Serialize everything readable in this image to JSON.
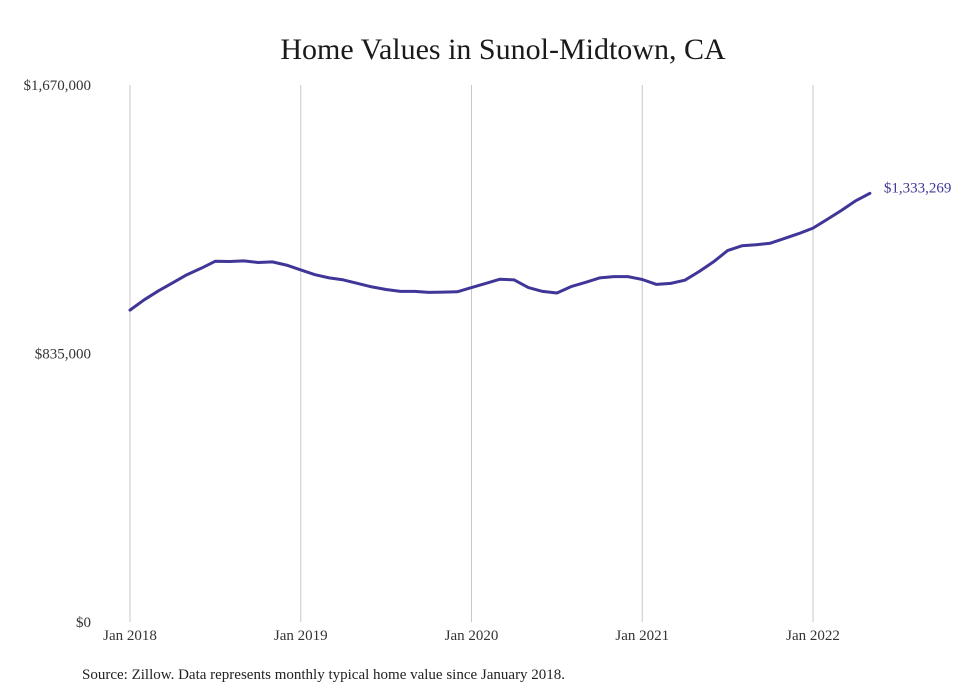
{
  "chart_data": {
    "type": "line",
    "title": "Home Values in Sunol-Midtown, CA",
    "xlabel": "",
    "ylabel": "",
    "ylim": [
      0,
      1670000
    ],
    "ytick_values": [
      0,
      835000,
      1670000
    ],
    "ytick_labels": [
      "$0",
      "$835,000",
      "$1,670,000"
    ],
    "xtick_values": [
      "2018-01",
      "2019-01",
      "2020-01",
      "2021-01",
      "2022-01"
    ],
    "xtick_labels": [
      "Jan 2018",
      "Jan 2019",
      "Jan 2020",
      "Jan 2021",
      "Jan 2022"
    ],
    "xlim": [
      "2018-01",
      "2022-12"
    ],
    "grid": "vertical",
    "line_color": "#3f3697",
    "series": [
      {
        "x": [
          "2018-01",
          "2018-02",
          "2018-03",
          "2018-04",
          "2018-05",
          "2018-06",
          "2018-07",
          "2018-08",
          "2018-09",
          "2018-10",
          "2018-11",
          "2018-12",
          "2019-01",
          "2019-02",
          "2019-03",
          "2019-04",
          "2019-05",
          "2019-06",
          "2019-07",
          "2019-08",
          "2019-09",
          "2019-10",
          "2019-11",
          "2019-12",
          "2020-01",
          "2020-02",
          "2020-03",
          "2020-04",
          "2020-05",
          "2020-06",
          "2020-07",
          "2020-08",
          "2020-09",
          "2020-10",
          "2020-11",
          "2020-12",
          "2021-01",
          "2021-02",
          "2021-03",
          "2021-04",
          "2021-05",
          "2021-06",
          "2021-07",
          "2021-08",
          "2021-09",
          "2021-10",
          "2021-11",
          "2021-12",
          "2022-01",
          "2022-02",
          "2022-03",
          "2022-04",
          "2022-05"
        ],
        "values": [
          970000,
          1002000,
          1030000,
          1055000,
          1080000,
          1100000,
          1122000,
          1121000,
          1123000,
          1118000,
          1120000,
          1110000,
          1095000,
          1080000,
          1070000,
          1064000,
          1053000,
          1042000,
          1034000,
          1028000,
          1028000,
          1025000,
          1026000,
          1027000,
          1040000,
          1053000,
          1066000,
          1064000,
          1040000,
          1028000,
          1023000,
          1043000,
          1056000,
          1070000,
          1074000,
          1074000,
          1065000,
          1050000,
          1053000,
          1063000,
          1090000,
          1120000,
          1155000,
          1170000,
          1173000,
          1178000,
          1193000,
          1208000,
          1225000,
          1252000,
          1280000,
          1310000,
          1333269
        ]
      }
    ],
    "end_label": "$1,333,269"
  },
  "footer": {
    "source": "Source: Zillow. Data represents monthly typical home value since January 2018."
  }
}
